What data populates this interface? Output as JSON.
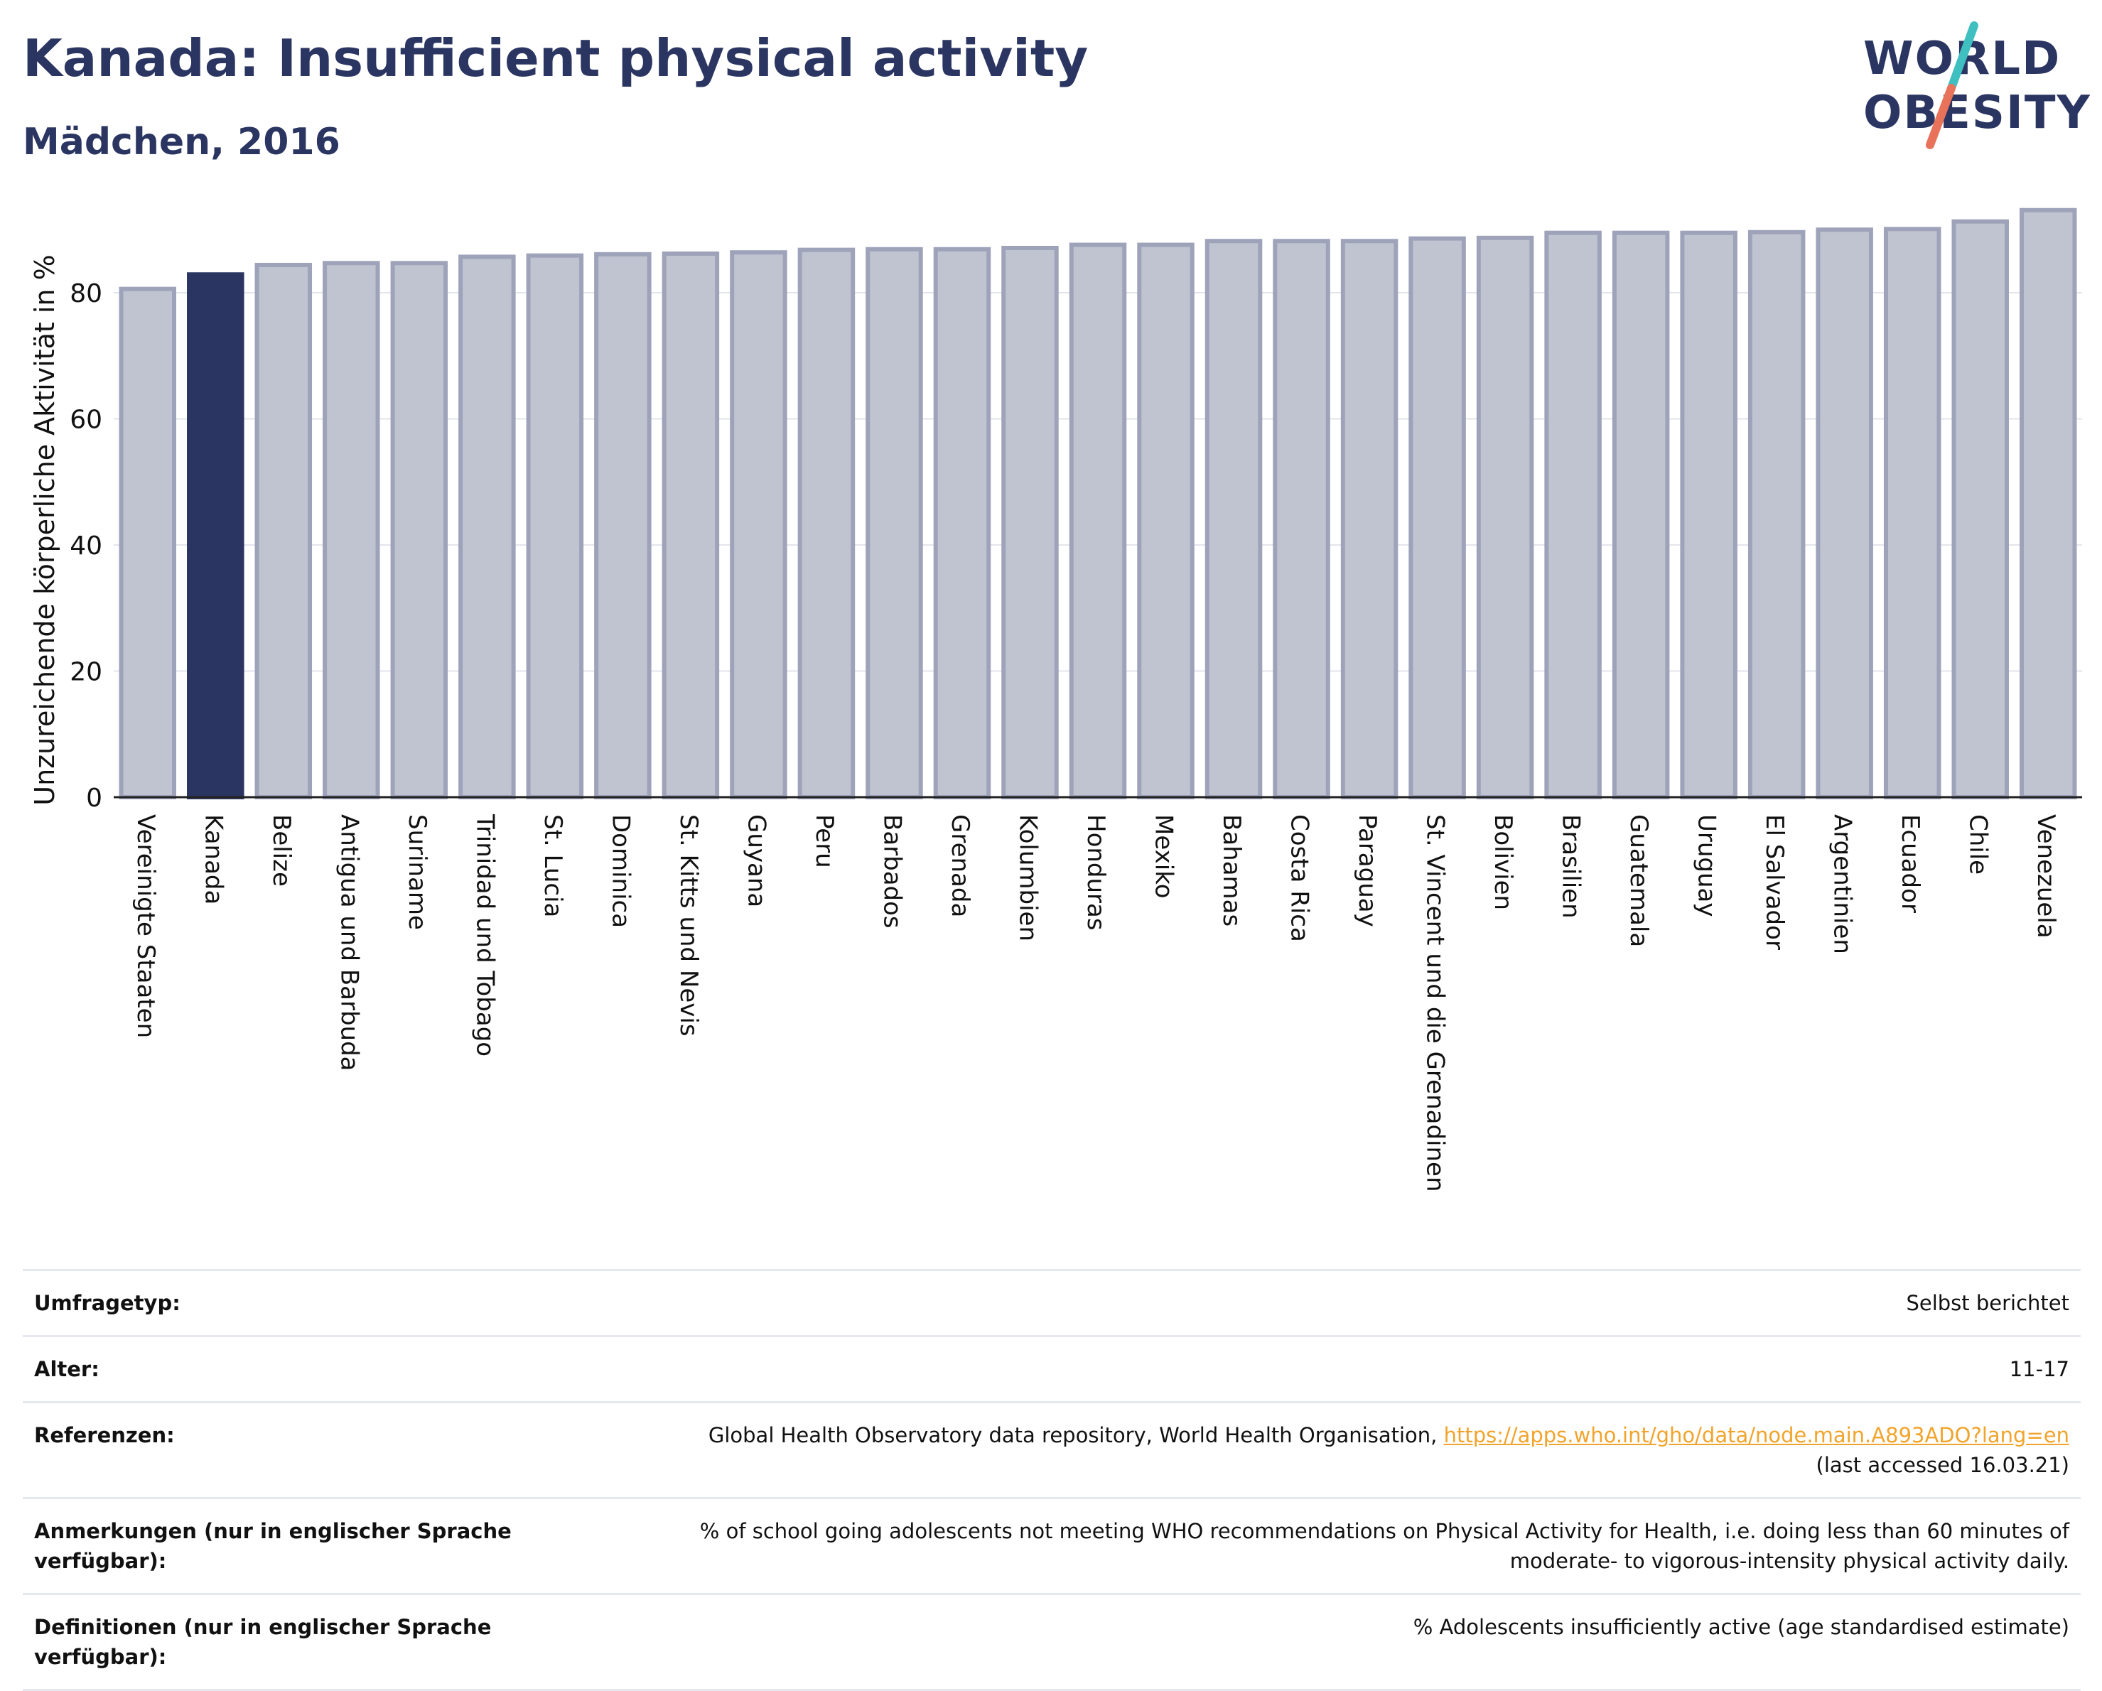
{
  "header": {
    "title": "Kanada: Insufficient physical activity",
    "subtitle": "Mädchen, 2016"
  },
  "logo": {
    "line1": "WORLD",
    "line2": "OBESITY",
    "slash_colors": [
      "#3fbfbf",
      "#e8735a"
    ]
  },
  "colors": {
    "highlight": "#2b3561",
    "bar_fill": "#c0c3d0",
    "bar_stroke": "#9ea3ba",
    "grid": "#e3e5ec"
  },
  "chart_data": {
    "type": "bar",
    "ylabel": "Unzureichende körperliche Aktivität in %",
    "ylim": [
      0,
      96
    ],
    "yticks": [
      0,
      20,
      40,
      60,
      80
    ],
    "grid": true,
    "highlight": "Kanada",
    "categories": [
      "Vereinigte Staaten",
      "Kanada",
      "Belize",
      "Antigua und Barbuda",
      "Suriname",
      "Trinidad und Tobago",
      "St. Lucia",
      "Dominica",
      "St. Kitts und Nevis",
      "Guyana",
      "Peru",
      "Barbados",
      "Grenada",
      "Kolumbien",
      "Honduras",
      "Mexiko",
      "Bahamas",
      "Costa Rica",
      "Paraguay",
      "St. Vincent und die Grenadinen",
      "Bolivien",
      "Brasilien",
      "Guatemala",
      "Uruguay",
      "El Salvador",
      "Argentinien",
      "Ecuador",
      "Chile",
      "Venezuela"
    ],
    "values": [
      80.6,
      82.9,
      84.4,
      84.7,
      84.7,
      85.7,
      85.9,
      86.1,
      86.2,
      86.4,
      86.8,
      86.9,
      86.9,
      87.1,
      87.6,
      87.6,
      88.2,
      88.2,
      88.2,
      88.6,
      88.7,
      89.5,
      89.5,
      89.5,
      89.6,
      90.0,
      90.1,
      91.3,
      93.1
    ]
  },
  "info": {
    "rows": [
      {
        "key": "Umfragetyp:",
        "value": "Selbst berichtet"
      },
      {
        "key": "Alter:",
        "value": "11-17"
      },
      {
        "key": "Referenzen:",
        "value": "Global Health Observatory data repository, World Health Organisation,",
        "link": "https://apps.who.int/gho/data/node.main.A893ADO?lang=en",
        "value2": "(last accessed 16.03.21)"
      },
      {
        "key": "Anmerkungen (nur in englischer Sprache verfügbar):",
        "value": "% of school going adolescents not meeting WHO recommendations on Physical Activity for Health, i.e. doing less than 60 minutes of moderate- to vigorous-intensity physical activity daily."
      },
      {
        "key": "Definitionen (nur in englischer Sprache verfügbar):",
        "value": "% Adolescents insufficiently active (age standardised estimate)"
      }
    ]
  }
}
